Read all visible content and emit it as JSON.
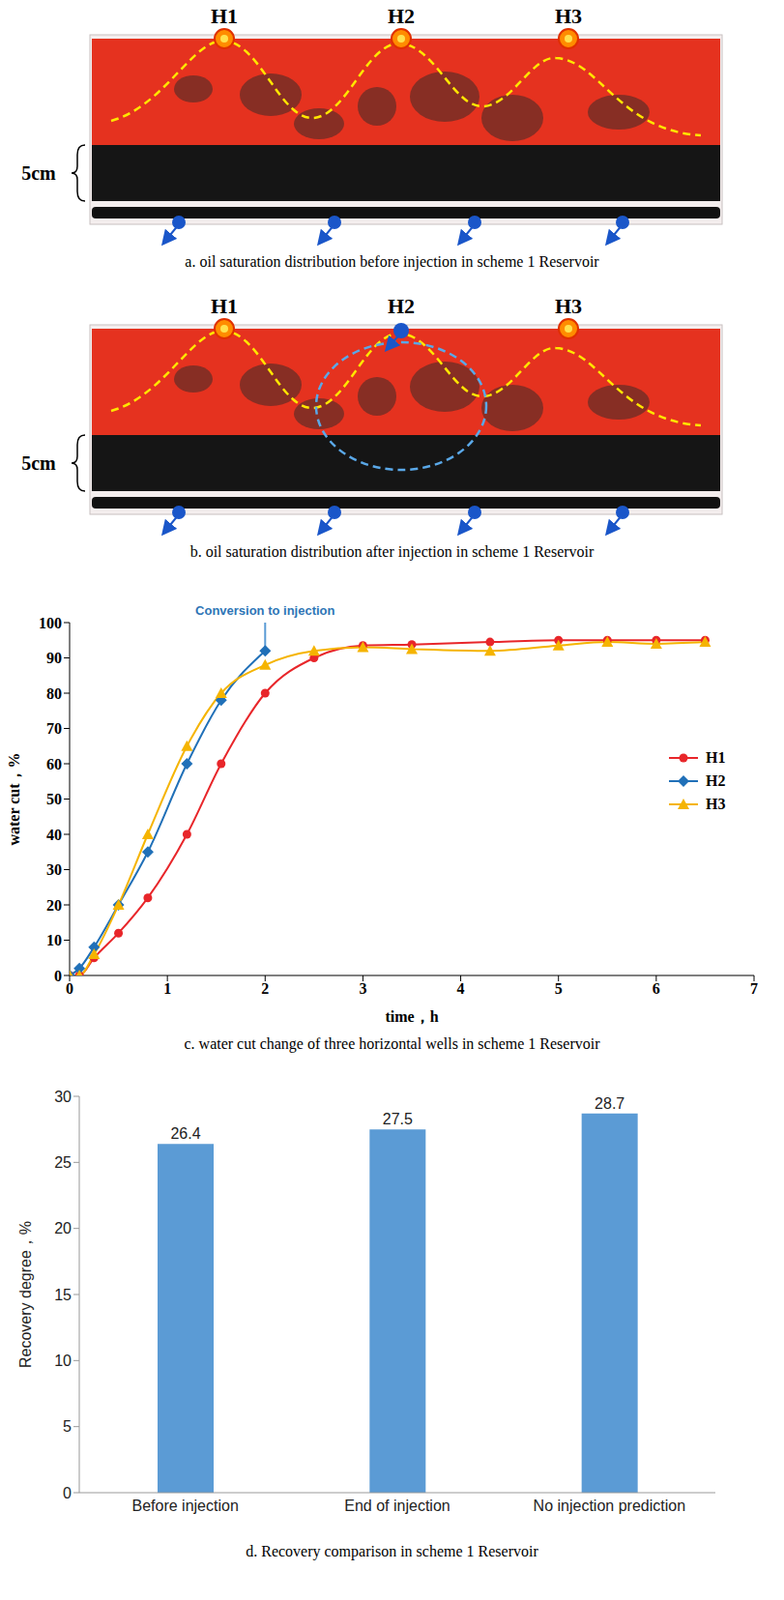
{
  "diagrams": [
    {
      "caption": "a. oil saturation distribution before injection in scheme 1 Reservoir",
      "wells": [
        "H1",
        "H2",
        "H3"
      ],
      "scale_label": "5cm"
    },
    {
      "caption": "b. oil saturation distribution after injection in scheme 1 Reservoir",
      "wells": [
        "H1",
        "H2",
        "H3"
      ],
      "scale_label": "5cm",
      "injection_well": "H2"
    }
  ],
  "chart_data": [
    {
      "type": "line",
      "title": "c. water cut change of three horizontal wells in scheme 1 Reservoir",
      "x_label": "time，h",
      "y_label": "water cut，%",
      "xlim": [
        0,
        7
      ],
      "xticks": [
        0,
        1,
        2,
        3,
        4,
        5,
        6,
        7
      ],
      "ylim": [
        0,
        100
      ],
      "yticks": [
        0,
        10,
        20,
        30,
        40,
        50,
        60,
        70,
        80,
        90,
        100
      ],
      "grid": false,
      "legend": "right",
      "series": [
        {
          "name": "H1",
          "color": "#e8262a",
          "marker": "circle",
          "x": [
            0,
            0.1,
            0.25,
            0.5,
            0.8,
            1.2,
            1.55,
            2,
            2.5,
            3,
            3.5,
            4.3,
            5,
            5.5,
            6,
            6.5
          ],
          "values": [
            0,
            0,
            5,
            12,
            22,
            40,
            60,
            80,
            90,
            93.5,
            93.8,
            94.5,
            95,
            95,
            95,
            95
          ]
        },
        {
          "name": "H2",
          "color": "#2070b8",
          "marker": "diamond",
          "x": [
            0,
            0.1,
            0.25,
            0.5,
            0.8,
            1.2,
            1.55,
            2
          ],
          "values": [
            0,
            2,
            8,
            20,
            35,
            60,
            78,
            92
          ]
        },
        {
          "name": "H3",
          "color": "#f5b400",
          "marker": "triangle",
          "x": [
            0,
            0.1,
            0.25,
            0.5,
            0.8,
            1.2,
            1.55,
            2,
            2.5,
            3,
            3.5,
            4.3,
            5,
            5.5,
            6,
            6.5
          ],
          "values": [
            0,
            0,
            6,
            20,
            40,
            65,
            80,
            88,
            92,
            93,
            92.5,
            92,
            93.5,
            94.5,
            94,
            94.5
          ]
        }
      ],
      "annotations": [
        {
          "text": "Conversion to injection",
          "x": 2,
          "y": 92
        }
      ]
    },
    {
      "type": "bar",
      "title": "d. Recovery comparison in scheme 1 Reservoir",
      "y_label": "Recovery degree，%",
      "categories": [
        "Before injection",
        "End of injection",
        "No injection prediction"
      ],
      "values": [
        26.4,
        27.5,
        28.7
      ],
      "color": "#5b9bd5",
      "ylim": [
        0,
        30
      ],
      "yticks": [
        0,
        5,
        10,
        15,
        20,
        25,
        30
      ],
      "grid": false,
      "data_labels": true
    }
  ]
}
